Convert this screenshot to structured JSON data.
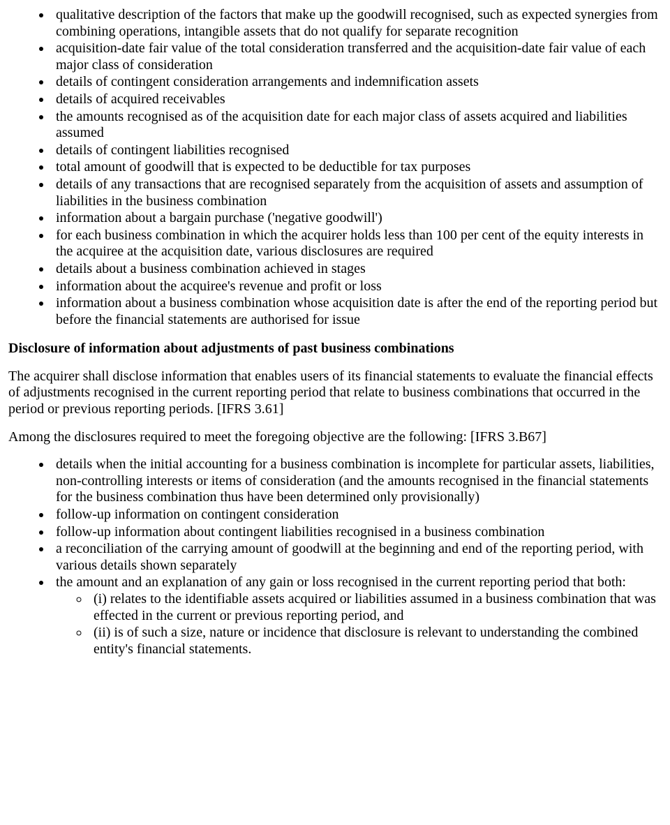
{
  "list1": {
    "items": [
      "qualitative description of the factors that make up the goodwill recognised, such as expected synergies from combining operations, intangible assets that do not qualify for separate recognition",
      "acquisition-date fair value of the total consideration transferred and the acquisition-date fair value of each major class of consideration",
      "details of contingent consideration arrangements and indemnification assets",
      "details of acquired receivables",
      "the amounts recognised as of the acquisition date for each major class of assets acquired and liabilities assumed",
      "details of contingent liabilities recognised",
      "total amount of goodwill that is expected to be deductible for tax purposes",
      "details of any transactions that are recognised separately from the acquisition of assets and assumption of liabilities in the business combination",
      "information about a bargain purchase ('negative goodwill')",
      "for each business combination in which the acquirer holds less than 100 per cent of the equity interests in the acquiree at the acquisition date, various disclosures are required",
      "details about a business combination achieved in stages",
      "information about the acquiree's revenue and profit or loss",
      "information about a business combination whose acquisition date is after the end of the reporting period but before the financial statements are authorised for issue"
    ]
  },
  "heading1": "Disclosure of information about adjustments of past business combinations",
  "para1": "The acquirer shall disclose information that enables users of its financial statements to evaluate the financial effects of adjustments recognised in the current reporting period that relate to business combinations that occurred in the period or previous reporting periods. [IFRS 3.61]",
  "para2": "Among the disclosures required to meet the foregoing objective are the following: [IFRS 3.B67]",
  "list2": {
    "items": [
      "details when the initial accounting for a business combination is incomplete for particular assets, liabilities, non-controlling interests or items of consideration (and the amounts recognised in the financial statements for the business combination thus have been determined only provisionally)",
      "follow-up information on contingent consideration",
      "follow-up information about contingent liabilities recognised in a business combination",
      "a reconciliation of the carrying amount of goodwill at the beginning and end of the reporting period, with various details shown separately",
      "the amount and an explanation of any gain or loss recognised in the current reporting period that both:"
    ],
    "subitems": [
      "(i) relates to the identifiable assets acquired or liabilities assumed in a business combination that was effected in the current or previous reporting period, and",
      "(ii) is of such a size, nature or incidence that disclosure is relevant to understanding the combined entity's financial statements."
    ]
  }
}
